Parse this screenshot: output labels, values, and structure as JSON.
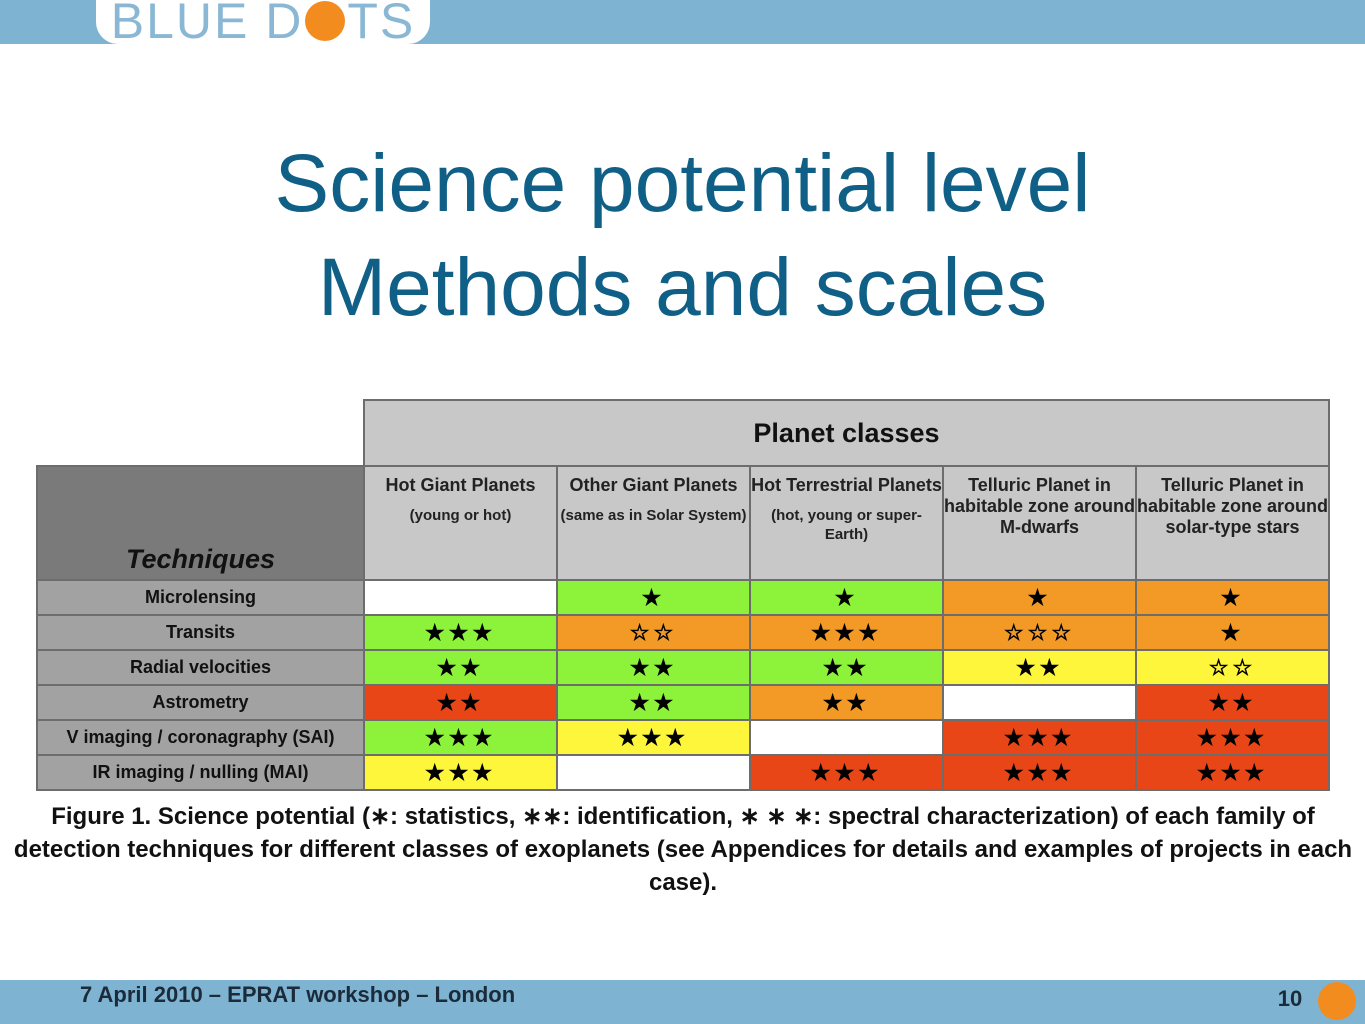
{
  "logo": {
    "part1": "BLUE D",
    "part2": "TS"
  },
  "title": {
    "line1": "Science potential level",
    "line2": "Methods and scales"
  },
  "table": {
    "header": "Planet classes",
    "techniques_label": "Techniques",
    "columns": [
      {
        "title": "Hot Giant Planets",
        "subtitle": "(young or hot)"
      },
      {
        "title": "Other Giant Planets",
        "subtitle": "(same as in Solar System)"
      },
      {
        "title": "Hot Terrestrial Planets",
        "subtitle": "(hot, young or super-Earth)"
      },
      {
        "title": "Telluric Planet in habitable zone around M-dwarfs",
        "subtitle": ""
      },
      {
        "title": "Telluric Planet in habitable zone around solar-type stars",
        "subtitle": ""
      }
    ],
    "rows": [
      {
        "label": "Microlensing",
        "cells": [
          {
            "value": "",
            "color": "#ffffff"
          },
          {
            "value": "★",
            "color": "#8cf23a"
          },
          {
            "value": "★",
            "color": "#8cf23a"
          },
          {
            "value": "★",
            "color": "#f39a26"
          },
          {
            "value": "★",
            "color": "#f39a26"
          }
        ]
      },
      {
        "label": "Transits",
        "cells": [
          {
            "value": "★★★",
            "color": "#8cf23a"
          },
          {
            "value": "☆☆",
            "color": "#f39a26"
          },
          {
            "value": "★★★",
            "color": "#f39a26"
          },
          {
            "value": "☆☆☆",
            "color": "#f39a26"
          },
          {
            "value": "★",
            "color": "#f39a26"
          }
        ]
      },
      {
        "label": "Radial velocities",
        "cells": [
          {
            "value": "★★",
            "color": "#8cf23a"
          },
          {
            "value": "★★",
            "color": "#8cf23a"
          },
          {
            "value": "★★",
            "color": "#8cf23a"
          },
          {
            "value": "★★",
            "color": "#fdf63a"
          },
          {
            "value": "☆☆",
            "color": "#fdf63a"
          }
        ]
      },
      {
        "label": "Astrometry",
        "cells": [
          {
            "value": "★★",
            "color": "#e94617"
          },
          {
            "value": "★★",
            "color": "#8cf23a"
          },
          {
            "value": "★★",
            "color": "#f39a26"
          },
          {
            "value": "",
            "color": "#ffffff"
          },
          {
            "value": "★★",
            "color": "#e94617"
          }
        ]
      },
      {
        "label": "V imaging / coronagraphy (SAI)",
        "cells": [
          {
            "value": "★★★",
            "color": "#8cf23a"
          },
          {
            "value": "★★★",
            "color": "#fdf63a"
          },
          {
            "value": "",
            "color": "#ffffff"
          },
          {
            "value": "★★★",
            "color": "#e94617"
          },
          {
            "value": "★★★",
            "color": "#e94617"
          }
        ]
      },
      {
        "label": "IR imaging / nulling (MAI)",
        "cells": [
          {
            "value": "★★★",
            "color": "#fdf63a"
          },
          {
            "value": "",
            "color": "#ffffff"
          },
          {
            "value": "★★★",
            "color": "#e94617"
          },
          {
            "value": "★★★",
            "color": "#e94617"
          },
          {
            "value": "★★★",
            "color": "#e94617"
          }
        ]
      }
    ]
  },
  "figure_caption": "Figure 1. Science potential (∗: statistics, ∗∗: identification, ∗ ∗ ∗: spectral characterization) of each family of detection techniques for different classes of exoplanets (see Appendices for details and examples of projects in each case).",
  "footer": {
    "text": "7 April 2010 – EPRAT workshop – London",
    "page_number": "10"
  }
}
